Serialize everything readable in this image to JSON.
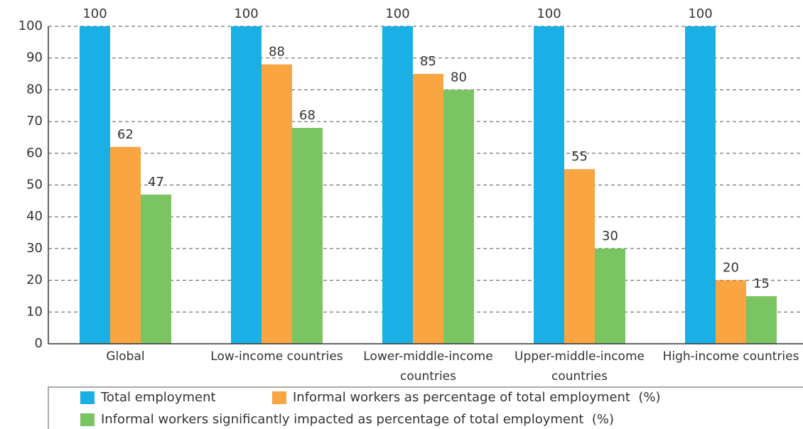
{
  "chart_data": {
    "type": "bar",
    "categories": [
      "Global",
      "Low-income countries",
      "Lower-middle-income countries",
      "Upper-middle-income countries",
      "High-income countries"
    ],
    "series": [
      {
        "name": "Total employment",
        "color": "#1ab0e6",
        "values": [
          100,
          100,
          100,
          100,
          100
        ]
      },
      {
        "name": "Informal workers as percentage of total employment  (%)",
        "color": "#f9a541",
        "values": [
          62,
          88,
          85,
          55,
          20
        ]
      },
      {
        "name": "Informal workers significantly impacted as percentage of total employment  (%)",
        "color": "#7bc462",
        "values": [
          47,
          68,
          80,
          30,
          15
        ]
      }
    ],
    "ylim": [
      0,
      100
    ],
    "yticks": [
      0,
      10,
      20,
      30,
      40,
      50,
      60,
      70,
      80,
      90,
      100
    ],
    "grid": true
  }
}
